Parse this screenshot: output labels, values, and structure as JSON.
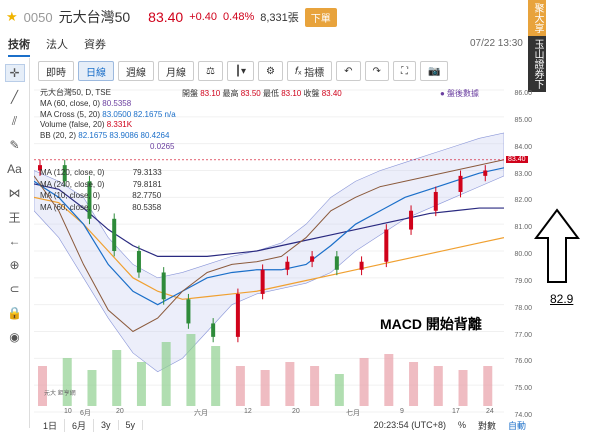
{
  "header": {
    "code": "0050",
    "name": "元大台灣50",
    "price": "83.40",
    "change": "+0.40",
    "change_pct": "0.48%",
    "volume": "8,331張",
    "order_badge": "下單",
    "timestamp": "07/22 13:30"
  },
  "tabs": [
    "技術",
    "法人",
    "資券"
  ],
  "side_panel": {
    "top": "聚大享",
    "bottom": "玉山證券下單"
  },
  "tools": [
    {
      "icon": "crosshair-icon",
      "glyph": "✛"
    },
    {
      "icon": "trendline-icon",
      "glyph": "╱"
    },
    {
      "icon": "parallel-icon",
      "glyph": "⫽"
    },
    {
      "icon": "brush-icon",
      "glyph": "✎"
    },
    {
      "icon": "text-icon",
      "glyph": "Aa"
    },
    {
      "icon": "pattern-icon",
      "glyph": "⋈"
    },
    {
      "icon": "fib-icon",
      "glyph": "王"
    },
    {
      "icon": "back-arrow-icon",
      "glyph": "←"
    },
    {
      "icon": "zoom-icon",
      "glyph": "⊕"
    },
    {
      "icon": "magnet-icon",
      "glyph": "⊂"
    },
    {
      "icon": "lock-icon",
      "glyph": "🔒"
    },
    {
      "icon": "eye-icon",
      "glyph": "◉"
    }
  ],
  "toolbar": {
    "buttons": [
      "即時",
      "日線",
      "週線",
      "月線"
    ],
    "active": "日線",
    "indicators_label": "指標"
  },
  "legend": {
    "title": "元大台灣50, D, TSE",
    "lines": [
      {
        "label": "MA (60, close, 0)",
        "value": "80.5358"
      },
      {
        "label": "MA Cross (5, 20)",
        "value": "83.0500 82.1675 n/a"
      },
      {
        "label": "Volume (false, 20)",
        "value": "8.331K"
      },
      {
        "label": "BB (20, 2)",
        "value": "82.1675 83.9086 80.4264"
      },
      {
        "label": "",
        "value": "0.0265"
      }
    ],
    "lines2": [
      {
        "label": "MA (120, close, 0)",
        "value": "79.3133"
      },
      {
        "label": "MA (240, close, 0)",
        "value": "79.8181"
      },
      {
        "label": "MA (10, close, 0)",
        "value": "82.7750"
      },
      {
        "label": "MA (60, close, 0)",
        "value": "80.5358"
      }
    ]
  },
  "ohlc": {
    "open_l": "開盤",
    "open": "83.10",
    "high_l": "最高",
    "high": "83.50",
    "low_l": "最低",
    "low": "83.10",
    "close_l": "收盤",
    "close": "83.40"
  },
  "after_hours": "● 盤後數據",
  "y_axis": [
    "86.00",
    "85.00",
    "84.00",
    "83.00",
    "82.00",
    "81.00",
    "80.00",
    "79.00",
    "78.00",
    "77.00",
    "76.00",
    "75.00",
    "74.00"
  ],
  "current_price_tag": "83.40",
  "x_axis": [
    "10",
    "6月",
    "20",
    "六月",
    "12",
    "20",
    "七月",
    "9",
    "17",
    "24"
  ],
  "bottom": {
    "ranges": [
      "1日",
      "6月",
      "3y",
      "5y"
    ],
    "clock": "20:23:54 (UTC+8)",
    "pct": "%",
    "log": "對數",
    "auto": "自動"
  },
  "annotation": "MACD 開始背離",
  "arrow_value": "82.9",
  "logo_text": "元大 鉅亨網",
  "colors": {
    "up": "#d0021b",
    "down": "#2e8b3a",
    "band": "#c9cff0",
    "accent": "#1b6fc9"
  }
}
